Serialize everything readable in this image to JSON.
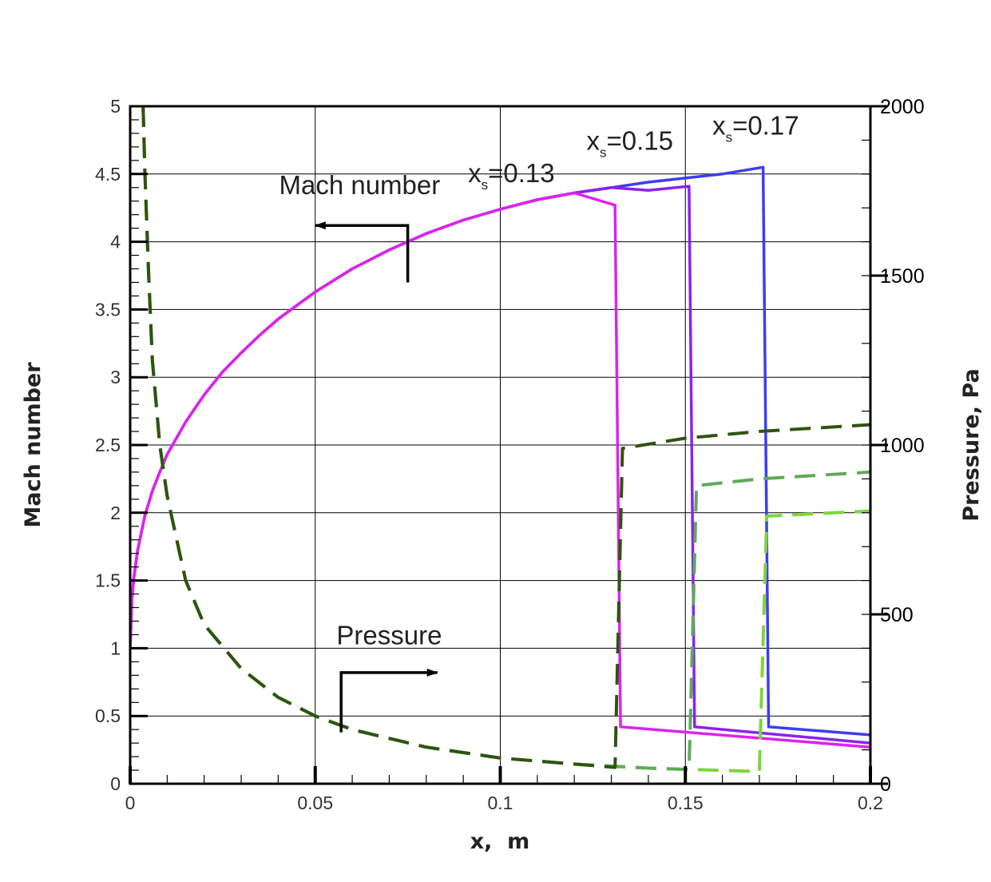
{
  "chart_data": {
    "type": "line",
    "xlabel": "x,  m",
    "ylabel": "Mach number",
    "y2label": "Pressure, Pa",
    "xlim": [
      0,
      0.2
    ],
    "ylim": [
      0,
      5
    ],
    "y2lim": [
      0,
      2000
    ],
    "x_ticks": [
      "0",
      "0.05",
      "0.1",
      "0.15",
      "0.2"
    ],
    "y_ticks": [
      "0",
      "0.5",
      "1",
      "1.5",
      "2",
      "2.5",
      "3",
      "3.5",
      "4",
      "4.5",
      "5"
    ],
    "y2_ticks": [
      "0",
      "500",
      "1000",
      "1500",
      "2000"
    ],
    "grid": true,
    "colors": {
      "mach_013": "#dd22ee",
      "mach_015": "#8a22ee",
      "mach_017": "#3d3df0",
      "pressure_013": "#2e5410",
      "pressure_015": "#5faa5a",
      "pressure_017": "#7ed63a"
    },
    "series": [
      {
        "axis": "left",
        "style": "solid",
        "color_key": "mach_017",
        "points": [
          [
            0,
            1.0
          ],
          [
            0.0005,
            1.37
          ],
          [
            0.001,
            1.52
          ],
          [
            0.002,
            1.72
          ],
          [
            0.004,
            1.98
          ],
          [
            0.006,
            2.16
          ],
          [
            0.008,
            2.3
          ],
          [
            0.01,
            2.43
          ],
          [
            0.015,
            2.67
          ],
          [
            0.02,
            2.87
          ],
          [
            0.025,
            3.04
          ],
          [
            0.03,
            3.18
          ],
          [
            0.035,
            3.31
          ],
          [
            0.04,
            3.43
          ],
          [
            0.05,
            3.63
          ],
          [
            0.06,
            3.8
          ],
          [
            0.07,
            3.94
          ],
          [
            0.08,
            4.06
          ],
          [
            0.09,
            4.16
          ],
          [
            0.1,
            4.24
          ],
          [
            0.11,
            4.31
          ],
          [
            0.12,
            4.36
          ],
          [
            0.13,
            4.4
          ],
          [
            0.14,
            4.44
          ],
          [
            0.15,
            4.47
          ],
          [
            0.16,
            4.5
          ],
          [
            0.171,
            4.55
          ],
          [
            0.1725,
            0.42
          ],
          [
            0.2,
            0.36
          ]
        ]
      },
      {
        "axis": "left",
        "style": "solid",
        "color_key": "mach_015",
        "points": [
          [
            0,
            1.0
          ],
          [
            0.0005,
            1.37
          ],
          [
            0.001,
            1.52
          ],
          [
            0.002,
            1.72
          ],
          [
            0.004,
            1.98
          ],
          [
            0.006,
            2.16
          ],
          [
            0.008,
            2.3
          ],
          [
            0.01,
            2.43
          ],
          [
            0.015,
            2.67
          ],
          [
            0.02,
            2.87
          ],
          [
            0.025,
            3.04
          ],
          [
            0.03,
            3.18
          ],
          [
            0.035,
            3.31
          ],
          [
            0.04,
            3.43
          ],
          [
            0.05,
            3.63
          ],
          [
            0.06,
            3.8
          ],
          [
            0.07,
            3.94
          ],
          [
            0.08,
            4.06
          ],
          [
            0.09,
            4.16
          ],
          [
            0.1,
            4.24
          ],
          [
            0.11,
            4.31
          ],
          [
            0.12,
            4.36
          ],
          [
            0.13,
            4.4
          ],
          [
            0.14,
            4.38
          ],
          [
            0.151,
            4.41
          ],
          [
            0.1525,
            0.42
          ],
          [
            0.2,
            0.3
          ]
        ]
      },
      {
        "axis": "left",
        "style": "solid",
        "color_key": "mach_013",
        "points": [
          [
            0,
            1.0
          ],
          [
            0.0005,
            1.37
          ],
          [
            0.001,
            1.52
          ],
          [
            0.002,
            1.72
          ],
          [
            0.004,
            1.98
          ],
          [
            0.006,
            2.16
          ],
          [
            0.008,
            2.3
          ],
          [
            0.01,
            2.43
          ],
          [
            0.015,
            2.67
          ],
          [
            0.02,
            2.87
          ],
          [
            0.025,
            3.04
          ],
          [
            0.03,
            3.18
          ],
          [
            0.035,
            3.31
          ],
          [
            0.04,
            3.43
          ],
          [
            0.05,
            3.63
          ],
          [
            0.06,
            3.8
          ],
          [
            0.07,
            3.94
          ],
          [
            0.08,
            4.06
          ],
          [
            0.09,
            4.16
          ],
          [
            0.1,
            4.24
          ],
          [
            0.11,
            4.31
          ],
          [
            0.12,
            4.36
          ],
          [
            0.131,
            4.27
          ],
          [
            0.1325,
            0.42
          ],
          [
            0.2,
            0.27
          ]
        ]
      },
      {
        "axis": "right",
        "style": "dashed",
        "color_key": "pressure_017",
        "points": [
          [
            0.0035,
            2000
          ],
          [
            0.004,
            1800
          ],
          [
            0.005,
            1500
          ],
          [
            0.006,
            1250
          ],
          [
            0.008,
            1000
          ],
          [
            0.01,
            850
          ],
          [
            0.015,
            600
          ],
          [
            0.02,
            470
          ],
          [
            0.03,
            340
          ],
          [
            0.04,
            255
          ],
          [
            0.05,
            200
          ],
          [
            0.06,
            160
          ],
          [
            0.08,
            108
          ],
          [
            0.1,
            76
          ],
          [
            0.12,
            58
          ],
          [
            0.14,
            46
          ],
          [
            0.17,
            36
          ],
          [
            0.172,
            790
          ],
          [
            0.2,
            805
          ]
        ]
      },
      {
        "axis": "right",
        "style": "dashed",
        "color_key": "pressure_015",
        "points": [
          [
            0.0035,
            2000
          ],
          [
            0.004,
            1800
          ],
          [
            0.005,
            1500
          ],
          [
            0.006,
            1250
          ],
          [
            0.008,
            1000
          ],
          [
            0.01,
            850
          ],
          [
            0.015,
            600
          ],
          [
            0.02,
            470
          ],
          [
            0.03,
            340
          ],
          [
            0.04,
            255
          ],
          [
            0.05,
            200
          ],
          [
            0.06,
            160
          ],
          [
            0.08,
            108
          ],
          [
            0.1,
            76
          ],
          [
            0.12,
            58
          ],
          [
            0.14,
            46
          ],
          [
            0.151,
            42
          ],
          [
            0.153,
            880
          ],
          [
            0.17,
            900
          ],
          [
            0.2,
            920
          ]
        ]
      },
      {
        "axis": "right",
        "style": "dashed",
        "color_key": "pressure_013",
        "points": [
          [
            0.0035,
            2000
          ],
          [
            0.004,
            1800
          ],
          [
            0.005,
            1500
          ],
          [
            0.006,
            1250
          ],
          [
            0.008,
            1000
          ],
          [
            0.01,
            850
          ],
          [
            0.015,
            600
          ],
          [
            0.02,
            470
          ],
          [
            0.03,
            340
          ],
          [
            0.04,
            255
          ],
          [
            0.05,
            200
          ],
          [
            0.06,
            160
          ],
          [
            0.08,
            108
          ],
          [
            0.1,
            76
          ],
          [
            0.12,
            58
          ],
          [
            0.131,
            48
          ],
          [
            0.133,
            990
          ],
          [
            0.15,
            1020
          ],
          [
            0.17,
            1040
          ],
          [
            0.2,
            1060
          ]
        ]
      }
    ],
    "annotations": [
      {
        "text": "Mach number",
        "x": 0.062,
        "y": 4.35
      },
      {
        "text": "Pressure",
        "x": 0.07,
        "y": 1.03
      },
      {
        "prefix": "x",
        "sub": "s",
        "suffix": "=0.13",
        "x": 0.103,
        "y": 4.44
      },
      {
        "prefix": "x",
        "sub": "s",
        "suffix": "=0.15",
        "x": 0.135,
        "y": 4.68
      },
      {
        "prefix": "x",
        "sub": "s",
        "suffix": "=0.17",
        "x": 0.169,
        "y": 4.79
      }
    ],
    "arrows": [
      {
        "points": [
          [
            0.075,
            3.7
          ],
          [
            0.075,
            4.12
          ],
          [
            0.05,
            4.12
          ]
        ]
      },
      {
        "points": [
          [
            0.057,
            0.38
          ],
          [
            0.057,
            0.82
          ],
          [
            0.083,
            0.82
          ]
        ]
      }
    ]
  }
}
